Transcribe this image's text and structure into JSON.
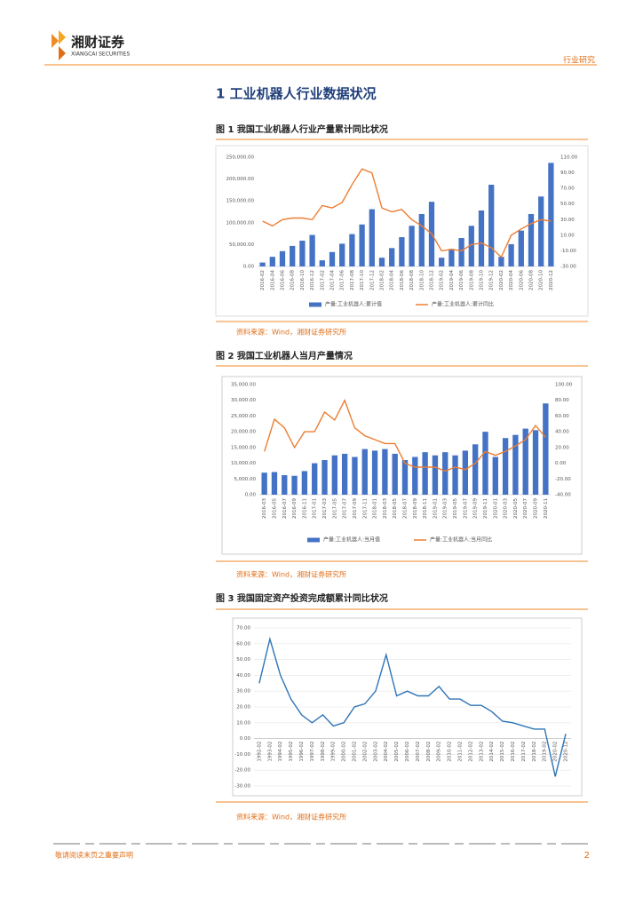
{
  "header": {
    "brand": "湘财证券",
    "brand_en": "XIANGCAI SECURITIES",
    "category": "行业研究"
  },
  "section_title": "1 工业机器人行业数据状况",
  "figures": [
    {
      "caption": "图 1 我国工业机器人行业产量累计同比状况",
      "source": "资料来源：Wind，湘财证券研究所"
    },
    {
      "caption": "图 2 我国工业机器人当月产量情况",
      "source": "资料来源：Wind，湘财证券研究所"
    },
    {
      "caption": "图 3 我国固定资产投资完成额累计同比状况",
      "source": "资料来源：Wind，湘财证券研究所"
    }
  ],
  "footer": {
    "notice": "敬请阅读末页之重要声明",
    "page": "2"
  },
  "chart_data": [
    {
      "type": "bar-line",
      "categories": [
        "2016-02",
        "2016-04",
        "2016-06",
        "2016-08",
        "2016-10",
        "2016-12",
        "2017-02",
        "2017-04",
        "2017-06",
        "2017-08",
        "2017-10",
        "2017-12",
        "2018-02",
        "2018-04",
        "2018-06",
        "2018-08",
        "2018-10",
        "2018-12",
        "2019-02",
        "2019-04",
        "2019-06",
        "2019-08",
        "2019-10",
        "2019-12",
        "2020-02",
        "2020-04",
        "2020-06",
        "2020-08",
        "2020-10",
        "2020-12"
      ],
      "series": [
        {
          "name": "产量:工业机器人:累计值",
          "type": "bar",
          "color": "#4472c4",
          "values": [
            9000,
            22000,
            35000,
            47000,
            59000,
            72000,
            14000,
            33000,
            52000,
            74000,
            96000,
            131000,
            20000,
            42000,
            67000,
            93000,
            120000,
            148000,
            20000,
            40000,
            65000,
            93000,
            128000,
            187000,
            22000,
            51000,
            82000,
            120000,
            160000,
            237000
          ]
        },
        {
          "name": "产量:工业机器人:累计同比",
          "type": "line",
          "axis": "y2",
          "color": "#ed7d31",
          "values": [
            28,
            22,
            30,
            32,
            32,
            30,
            48,
            45,
            52,
            75,
            95,
            90,
            45,
            40,
            43,
            30,
            22,
            12,
            -10,
            -8,
            -10,
            -2,
            0,
            -6,
            -18,
            10,
            18,
            25,
            30,
            28
          ]
        }
      ],
      "ylim": [
        0,
        250000
      ],
      "yticks": [
        {
          "value": 0,
          "label": "0.00"
        },
        {
          "value": 50000,
          "label": "50,000.00"
        },
        {
          "value": 100000,
          "label": "100,000.00"
        },
        {
          "value": 150000,
          "label": "150,000.00"
        },
        {
          "value": 200000,
          "label": "200,000.00"
        },
        {
          "value": 250000,
          "label": "250,000.00"
        }
      ],
      "y2lim": [
        -30,
        110
      ],
      "y2ticks": [
        {
          "value": -30,
          "label": "-30.00"
        },
        {
          "value": -10,
          "label": "-10.00"
        },
        {
          "value": 10,
          "label": "10.00"
        },
        {
          "value": 30,
          "label": "30.00"
        },
        {
          "value": 50,
          "label": "50.00"
        },
        {
          "value": 70,
          "label": "70.00"
        },
        {
          "value": 90,
          "label": "90.00"
        },
        {
          "value": 110,
          "label": "110.00"
        }
      ],
      "grid": false,
      "legend": "bottom"
    },
    {
      "type": "bar-line",
      "categories": [
        "2016-03",
        "2016-05",
        "2016-07",
        "2016-09",
        "2016-11",
        "2017-01",
        "2017-03",
        "2017-05",
        "2017-07",
        "2017-09",
        "2017-11",
        "2018-01",
        "2018-03",
        "2018-05",
        "2018-07",
        "2018-09",
        "2018-11",
        "2019-01",
        "2019-03",
        "2019-05",
        "2019-07",
        "2019-09",
        "2019-11",
        "2020-01",
        "2020-03",
        "2020-05",
        "2020-07",
        "2020-09",
        "2020-11"
      ],
      "series": [
        {
          "name": "产量:工业机器人:当月值",
          "type": "bar",
          "color": "#4472c4",
          "values": [
            7000,
            7200,
            6200,
            6000,
            7500,
            10000,
            11000,
            12500,
            13000,
            12000,
            14500,
            14000,
            14500,
            13000,
            11000,
            12000,
            13500,
            12500,
            13500,
            12500,
            14000,
            16000,
            20000,
            12000,
            18000,
            19000,
            21000,
            20500,
            29000
          ]
        },
        {
          "name": "产量:工业机器人:当月同比",
          "type": "line",
          "axis": "y2",
          "color": "#ed7d31",
          "values": [
            15,
            56,
            45,
            20,
            40,
            40,
            65,
            55,
            80,
            45,
            35,
            30,
            25,
            25,
            0,
            -5,
            -5,
            -5,
            -10,
            -5,
            -8,
            0,
            15,
            10,
            15,
            22,
            30,
            48,
            33
          ]
        }
      ],
      "ylim": [
        0,
        35000
      ],
      "yticks": [
        {
          "value": 0,
          "label": "0.00"
        },
        {
          "value": 5000,
          "label": "5,000.00"
        },
        {
          "value": 10000,
          "label": "10,000.00"
        },
        {
          "value": 15000,
          "label": "15,000.00"
        },
        {
          "value": 20000,
          "label": "20,000.00"
        },
        {
          "value": 25000,
          "label": "25,000.00"
        },
        {
          "value": 30000,
          "label": "30,000.00"
        },
        {
          "value": 35000,
          "label": "35,000.00"
        }
      ],
      "y2lim": [
        -40,
        100
      ],
      "y2ticks": [
        {
          "value": -40,
          "label": "-40.00"
        },
        {
          "value": -20,
          "label": "-20.00"
        },
        {
          "value": 0,
          "label": "0.00"
        },
        {
          "value": 20,
          "label": "20.00"
        },
        {
          "value": 40,
          "label": "40.00"
        },
        {
          "value": 60,
          "label": "60.00"
        },
        {
          "value": 80,
          "label": "80.00"
        },
        {
          "value": 100,
          "label": "100.00"
        }
      ],
      "grid": false,
      "legend": "bottom"
    },
    {
      "type": "line",
      "categories": [
        "1992-02",
        "1993-02",
        "1994-02",
        "1995-02",
        "1996-02",
        "1997-02",
        "1998-02",
        "1999-02",
        "2000-02",
        "2001-02",
        "2002-02",
        "2003-02",
        "2004-02",
        "2005-02",
        "2006-02",
        "2007-02",
        "2008-02",
        "2009-02",
        "2010-02",
        "2011-02",
        "2012-02",
        "2013-02",
        "2014-02",
        "2015-02",
        "2016-02",
        "2017-02",
        "2018-02",
        "2019-02",
        "2020-02",
        "2020-12"
      ],
      "series": [
        {
          "name": "固定资产投资完成额:累计同比",
          "type": "line",
          "color": "#2e75b6",
          "values": [
            35,
            63,
            40,
            25,
            15,
            10,
            15,
            8,
            10,
            20,
            22,
            30,
            53,
            27,
            30,
            27,
            27,
            33,
            25,
            25,
            21,
            21,
            17,
            11,
            10,
            8,
            6,
            6,
            -24,
            3
          ]
        }
      ],
      "ylim": [
        -30,
        70
      ],
      "yticks": [
        {
          "value": -30,
          "label": "-30.00"
        },
        {
          "value": -20,
          "label": "-20.00"
        },
        {
          "value": -10,
          "label": "-10.00"
        },
        {
          "value": 0,
          "label": "0.00"
        },
        {
          "value": 10,
          "label": "10.00"
        },
        {
          "value": 20,
          "label": "20.00"
        },
        {
          "value": 30,
          "label": "30.00"
        },
        {
          "value": 40,
          "label": "40.00"
        },
        {
          "value": 50,
          "label": "50.00"
        },
        {
          "value": 60,
          "label": "60.00"
        },
        {
          "value": 70,
          "label": "70.00"
        }
      ],
      "grid": true
    }
  ]
}
